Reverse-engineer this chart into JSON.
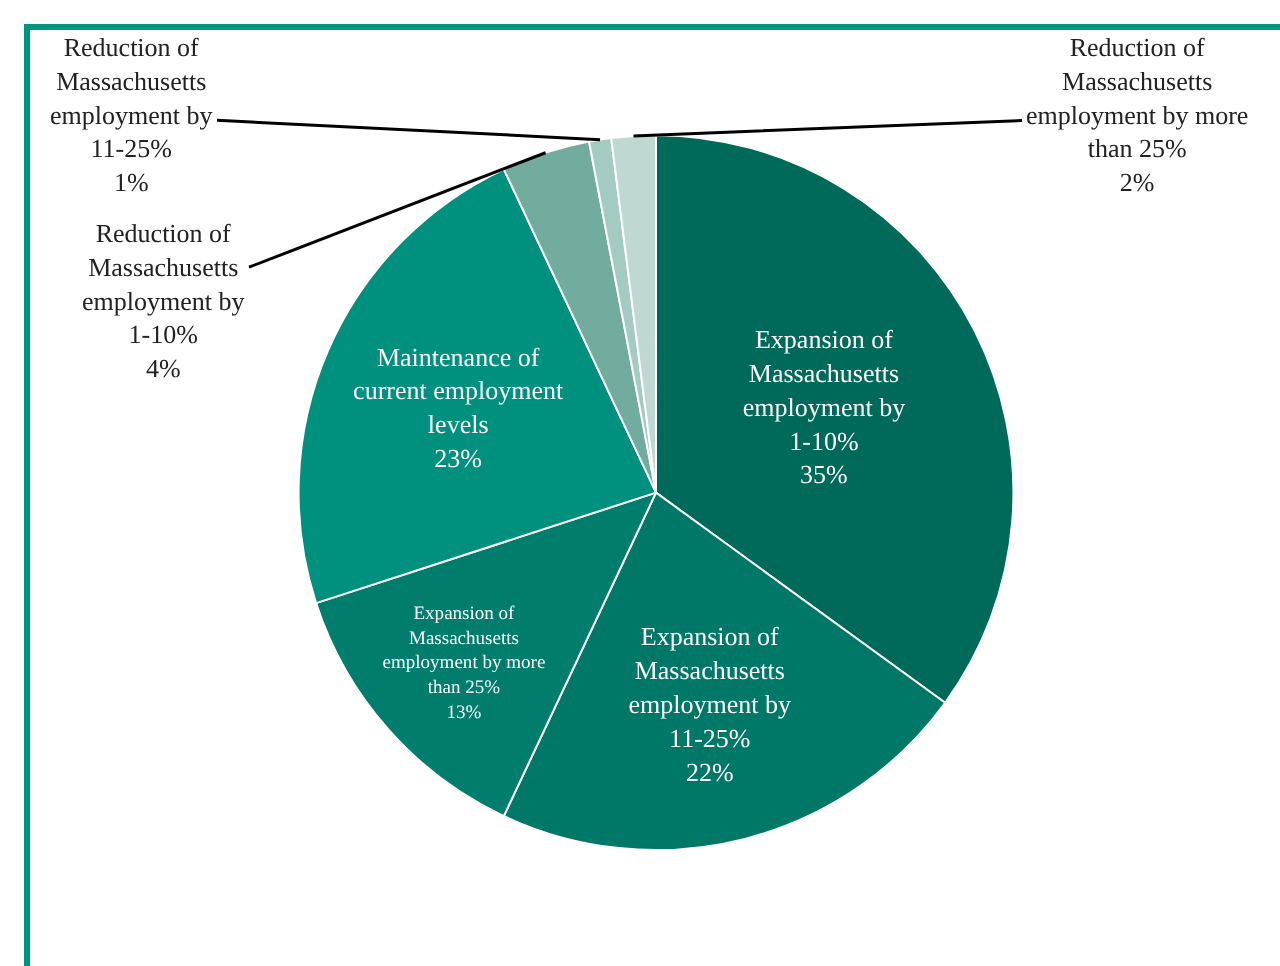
{
  "chart_data": {
    "type": "pie",
    "categories": [
      "Expansion of Massachusetts employment by 1-10%",
      "Expansion of Massachusetts employment by 11-25%",
      "Expansion of Massachusetts employment by more than 25%",
      "Maintenance of current employment levels",
      "Reduction of Massachusetts employment by 1-10%",
      "Reduction of Massachusetts employment by 11-25%",
      "Reduction of Massachusetts employment by more than 25%"
    ],
    "values": [
      35,
      22,
      13,
      23,
      4,
      1,
      2
    ],
    "value_labels": [
      "35%",
      "22%",
      "13%",
      "23%",
      "4%",
      "1%",
      "2%"
    ],
    "colors": [
      "#006a5a",
      "#007868",
      "#007d6c",
      "#00917e",
      "#72ac9f",
      "#a4cbc2",
      "#c0d8d2"
    ],
    "legend": false
  }
}
